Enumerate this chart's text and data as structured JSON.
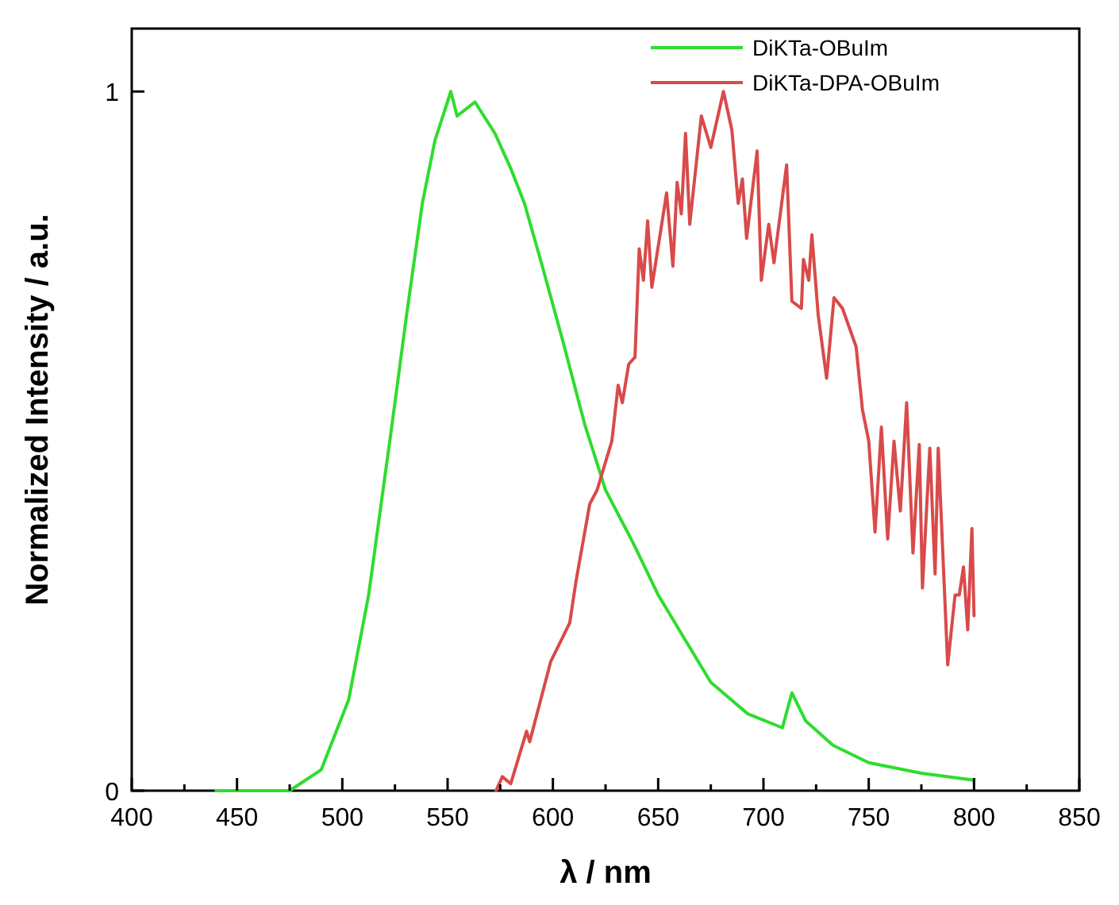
{
  "chart_data": {
    "type": "line",
    "xlabel": "λ / nm",
    "ylabel": "Normalized Intensity / a.u.",
    "xlim": [
      400,
      850
    ],
    "ylim": [
      0,
      1.09
    ],
    "xticks": [
      400,
      {
        "value": 425,
        "label": null
      },
      450,
      {
        "value": 475,
        "label": null
      },
      500,
      {
        "value": 525,
        "label": null
      },
      550,
      {
        "value": 575,
        "label": null
      },
      600,
      {
        "value": 625,
        "label": null
      },
      650,
      {
        "value": 675,
        "label": null
      },
      700,
      {
        "value": 725,
        "label": null
      },
      750,
      {
        "value": 775,
        "label": null
      },
      800,
      {
        "value": 825,
        "label": null
      },
      850
    ],
    "yticks": [
      0,
      1
    ],
    "grid": false,
    "legend": "top right",
    "marker": "none",
    "line_style": "solid",
    "series": [
      {
        "name": "DiKTa-OBuIm",
        "color": "#2fdc2f",
        "x": [
          440,
          475,
          490,
          503,
          512.5,
          523,
          530.5,
          538,
          544,
          551.5,
          554.5,
          563,
          572.5,
          580,
          586.5,
          595,
          605,
          615,
          625,
          638,
          650,
          668,
          675,
          692.5,
          709,
          713.5,
          720,
          733,
          750,
          775,
          800
        ],
        "values": [
          0,
          0,
          0.03,
          0.13,
          0.28,
          0.51,
          0.68,
          0.84,
          0.93,
          1.0,
          0.965,
          0.985,
          0.94,
          0.89,
          0.84,
          0.75,
          0.64,
          0.525,
          0.43,
          0.355,
          0.28,
          0.19,
          0.155,
          0.11,
          0.09,
          0.14,
          0.1,
          0.065,
          0.04,
          0.025,
          0.015
        ]
      },
      {
        "name": "DiKTa-DPA-OBuIm",
        "color": "#d94a4a",
        "x": [
          573,
          576,
          580,
          587.5,
          589,
          599,
          608,
          611,
          617.5,
          621,
          628,
          631,
          633,
          636,
          639,
          641,
          643,
          645,
          647,
          654,
          657,
          659,
          661,
          663,
          665,
          670.5,
          675,
          681,
          685,
          688,
          690,
          692,
          697,
          699,
          702.5,
          705,
          711,
          713.5,
          718,
          719,
          721.5,
          723,
          726,
          730,
          733.5,
          737.5,
          744,
          747,
          750,
          753,
          756,
          759,
          762,
          765,
          768,
          771,
          774,
          775.5,
          779,
          781.5,
          783,
          787.5,
          791,
          793,
          795,
          797,
          799,
          800
        ],
        "values": [
          0,
          0.02,
          0.01,
          0.085,
          0.07,
          0.185,
          0.24,
          0.3,
          0.41,
          0.43,
          0.5,
          0.58,
          0.555,
          0.61,
          0.62,
          0.775,
          0.73,
          0.815,
          0.72,
          0.855,
          0.75,
          0.87,
          0.825,
          0.94,
          0.81,
          0.965,
          0.92,
          1.0,
          0.945,
          0.84,
          0.875,
          0.79,
          0.915,
          0.73,
          0.81,
          0.755,
          0.895,
          0.7,
          0.69,
          0.76,
          0.73,
          0.795,
          0.68,
          0.59,
          0.705,
          0.69,
          0.635,
          0.545,
          0.5,
          0.37,
          0.52,
          0.36,
          0.5,
          0.4,
          0.555,
          0.34,
          0.495,
          0.29,
          0.49,
          0.31,
          0.49,
          0.18,
          0.28,
          0.28,
          0.32,
          0.23,
          0.375,
          0.25
        ]
      }
    ]
  }
}
